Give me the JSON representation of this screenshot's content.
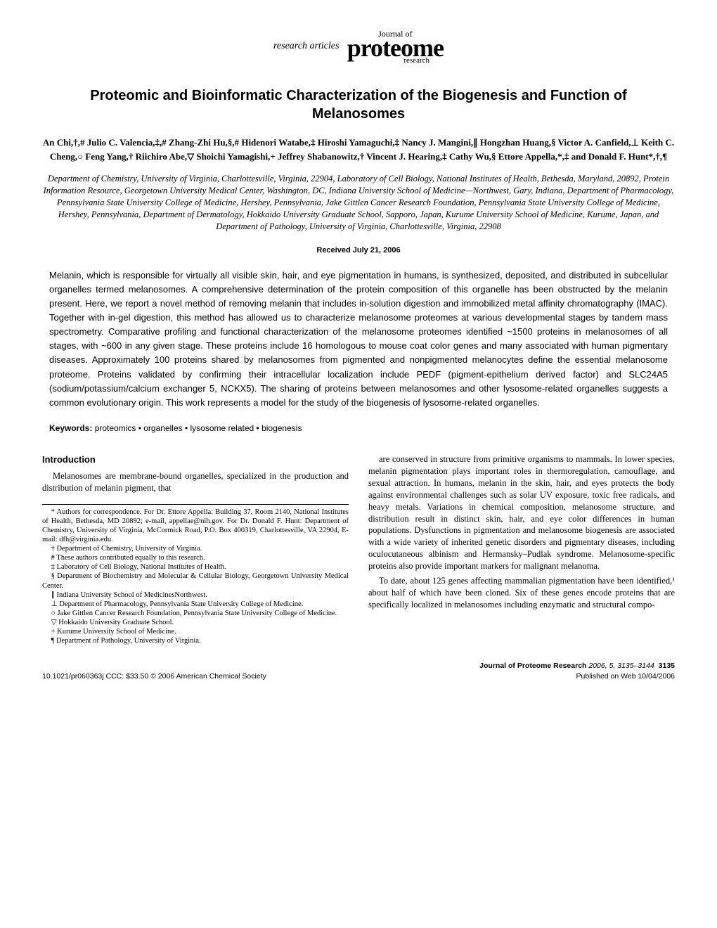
{
  "header": {
    "research_articles": "research articles",
    "journal_of": "Journal of",
    "proteome": "proteome",
    "research": "research"
  },
  "title": "Proteomic and Bioinformatic Characterization of the Biogenesis and Function of Melanosomes",
  "authors": "An Chi,†,# Julio C. Valencia,‡,# Zhang-Zhi Hu,§,# Hidenori Watabe,‡ Hiroshi Yamaguchi,‡ Nancy J. Mangini,∥ Hongzhan Huang,§ Victor A. Canfield,⊥ Keith C. Cheng,○ Feng Yang,† Riichiro Abe,▽ Shoichi Yamagishi,+ Jeffrey Shabanowitz,† Vincent J. Hearing,‡ Cathy Wu,§ Ettore Appella,*,‡ and Donald F. Hunt*,†,¶",
  "affiliations": "Department of Chemistry, University of Virginia, Charlottesville, Virginia, 22904, Laboratory of Cell Biology, National Institutes of Health, Bethesda, Maryland, 20892, Protein Information Resource, Georgetown University Medical Center, Washington, DC, Indiana University School of Medicine—Northwest, Gary, Indiana, Department of Pharmacology, Pennsylvania State University College of Medicine, Hershey, Pennsylvania, Jake Gittlen Cancer Research Foundation, Pennsylvania State University College of Medicine, Hershey, Pennsylvania, Department of Dermatology, Hokkaido University Graduate School, Sapporo, Japan, Kurume University School of Medicine, Kurume, Japan, and Department of Pathology, University of Virginia, Charlottesville, Virginia, 22908",
  "received": "Received July 21, 2006",
  "abstract": "Melanin, which is responsible for virtually all visible skin, hair, and eye pigmentation in humans, is synthesized, deposited, and distributed in subcellular organelles termed melanosomes. A comprehensive determination of the protein composition of this organelle has been obstructed by the melanin present. Here, we report a novel method of removing melanin that includes in-solution digestion and immobilized metal affinity chromatography (IMAC). Together with in-gel digestion, this method has allowed us to characterize melanosome proteomes at various developmental stages by tandem mass spectrometry. Comparative profiling and functional characterization of the melanosome proteomes identified ~1500 proteins in melanosomes of all stages, with ~600 in any given stage. These proteins include 16 homologous to mouse coat color genes and many associated with human pigmentary diseases. Approximately 100 proteins shared by melanosomes from pigmented and nonpigmented melanocytes define the essential melanosome proteome. Proteins validated by confirming their intracellular localization include PEDF (pigment-epithelium derived factor) and SLC24A5 (sodium/potassium/calcium exchanger 5, NCKX5). The sharing of proteins between melanosomes and other lysosome-related organelles suggests a common evolutionary origin. This work represents a model for the study of the biogenesis of lysosome-related organelles.",
  "keywords": {
    "label": "Keywords:",
    "text": "  proteomics • organelles • lysosome related • biogenesis"
  },
  "introduction": {
    "heading": "Introduction",
    "para1": "Melanosomes are membrane-bound organelles, specialized in the production and distribution of melanin pigment, that"
  },
  "footnotes": {
    "corr": "* Authors for correspondence. For Dr. Ettore Appella: Building 37, Room 2140, National Institutes of Health, Bethesda, MD 20892; e-mail, appellae@nih.gov. For Dr. Donald F. Hunt: Department of Chemistry, University of Virginia, McCormick Road, P.O. Box 400319, Charlottesville, VA 22904, E-mail: dfh@virginia.edu.",
    "f1": "† Department of Chemistry, University of Virginia.",
    "f2": "# These authors contributed equally to this research.",
    "f3": "‡ Laboratory of Cell Biology, National Institutes of Health.",
    "f4": "§ Department of Biochemistry and Molecular & Cellular Biology, Georgetown University Medical Center.",
    "f5": "∥ Indiana University School of MedicinesNorthwest.",
    "f6": "⊥ Department of Pharmacology, Pennsylvania State University College of Medicine.",
    "f7": "○ Jake Gittlen Cancer Research Foundation, Pennsylvania State University College of Medicine.",
    "f8": "▽ Hokkaido University Graduate School.",
    "f9": "+ Kurume University School of Medicine.",
    "f10": "¶ Department of Pathology, University of Virginia."
  },
  "right_col": {
    "para1": "are conserved in structure from primitive organisms to mammals. In lower species, melanin pigmentation plays important roles in thermoregulation, camouflage, and sexual attraction. In humans, melanin in the skin, hair, and eyes protects the body against environmental challenges such as solar UV exposure, toxic free radicals, and heavy metals. Variations in chemical composition, melanosome structure, and distribution result in distinct skin, hair, and eye color differences in human populations. Dysfunctions in pigmentation and melanosome biogenesis are associated with a wide variety of inherited genetic disorders and pigmentary diseases, including oculocutaneous albinism and Hermansky–Pudlak syndrome. Melanosome-specific proteins also provide important markers for malignant melanoma.",
    "para2": "To date, about 125 genes affecting mammalian pigmentation have been identified,¹ about half of which have been cloned. Six of these genes encode proteins that are specifically localized in melanosomes including enzymatic and structural compo-"
  },
  "footer": {
    "left": "10.1021/pr060363j CCC: $33.50    © 2006 American Chemical Society",
    "journal": "Journal of Proteome Research",
    "citation": " 2006, 5, 3135–3144",
    "page": "3135",
    "published": "Published on Web 10/04/2006"
  }
}
